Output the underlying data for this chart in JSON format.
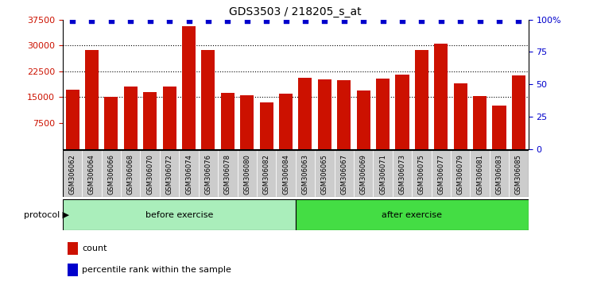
{
  "title": "GDS3503 / 218205_s_at",
  "samples": [
    "GSM306062",
    "GSM306064",
    "GSM306066",
    "GSM306068",
    "GSM306070",
    "GSM306072",
    "GSM306074",
    "GSM306076",
    "GSM306078",
    "GSM306080",
    "GSM306082",
    "GSM306084",
    "GSM306063",
    "GSM306065",
    "GSM306067",
    "GSM306069",
    "GSM306071",
    "GSM306073",
    "GSM306075",
    "GSM306077",
    "GSM306079",
    "GSM306081",
    "GSM306083",
    "GSM306085"
  ],
  "counts": [
    17200,
    28700,
    15000,
    18200,
    16400,
    18000,
    35500,
    28800,
    16300,
    15600,
    13500,
    16100,
    20600,
    20200,
    19900,
    17000,
    20300,
    21500,
    28700,
    30500,
    19100,
    15400,
    12500,
    21300
  ],
  "bar_color": "#CC1100",
  "dot_color": "#0000CC",
  "ylim_left": [
    0,
    37500
  ],
  "yticks_left": [
    7500,
    15000,
    22500,
    30000,
    37500
  ],
  "ylim_right": [
    0,
    100
  ],
  "yticks_right": [
    0,
    25,
    50,
    75,
    100
  ],
  "protocol_labels": [
    "before exercise",
    "after exercise"
  ],
  "protocol_colors": [
    "#AAEEBB",
    "#44DD44"
  ],
  "protocol_split": 12,
  "background_color": "#FFFFFF",
  "tick_color_left": "#CC1100",
  "tick_color_right": "#0000CC",
  "xtick_bg_color": "#CCCCCC",
  "legend_items": [
    "count",
    "percentile rank within the sample"
  ],
  "grid_yticks": [
    15000,
    22500,
    30000
  ]
}
